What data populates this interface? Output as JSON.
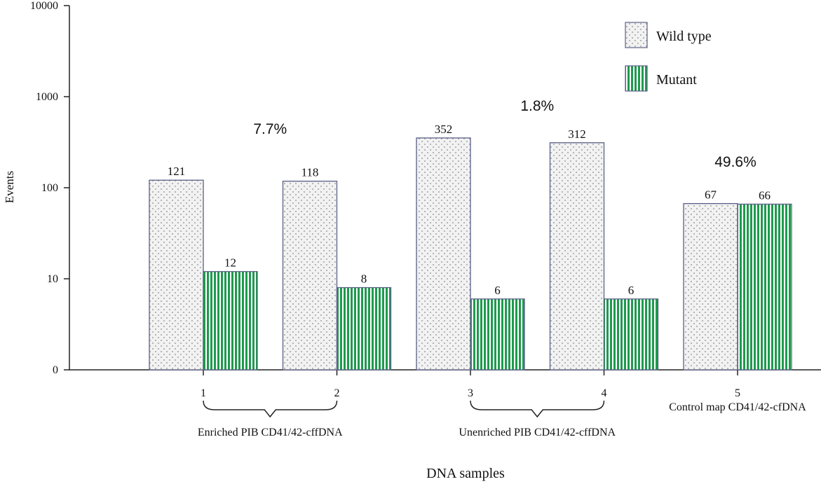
{
  "chart_data": {
    "type": "bar",
    "scale": "log",
    "title": "",
    "xlabel": "DNA samples",
    "ylabel": "Events",
    "ylim": [
      1,
      10000
    ],
    "yticks": [
      {
        "value": 1,
        "label": "0"
      },
      {
        "value": 10,
        "label": "10"
      },
      {
        "value": 100,
        "label": "100"
      },
      {
        "value": 1000,
        "label": "1000"
      },
      {
        "value": 10000,
        "label": "10000"
      }
    ],
    "categories": [
      "1",
      "2",
      "3",
      "4",
      "5"
    ],
    "series": [
      {
        "name": "Wild type",
        "pattern": "dots",
        "values": [
          121,
          118,
          352,
          312,
          67
        ],
        "labels": [
          "121",
          "118",
          "352",
          "312",
          "67"
        ]
      },
      {
        "name": "Mutant",
        "pattern": "stripes",
        "color": "#1e9a4e",
        "values": [
          12,
          8,
          6,
          6,
          66
        ],
        "labels": [
          "12",
          "8",
          "6",
          "6",
          "66"
        ]
      }
    ],
    "groups": [
      {
        "label": "Enriched PIB CD41/42-cffDNA",
        "from": 0,
        "to": 1
      },
      {
        "label": "Unenriched PIB CD41/42-cffDNA",
        "from": 2,
        "to": 3
      },
      {
        "label": "Control map CD41/42-cfDNA",
        "from": 4,
        "to": 4
      }
    ],
    "annotations": [
      {
        "text": "7.7%",
        "group": 0
      },
      {
        "text": "1.8%",
        "group": 1
      },
      {
        "text": "49.6%",
        "group": 2
      }
    ],
    "legend_position": "top-right"
  }
}
